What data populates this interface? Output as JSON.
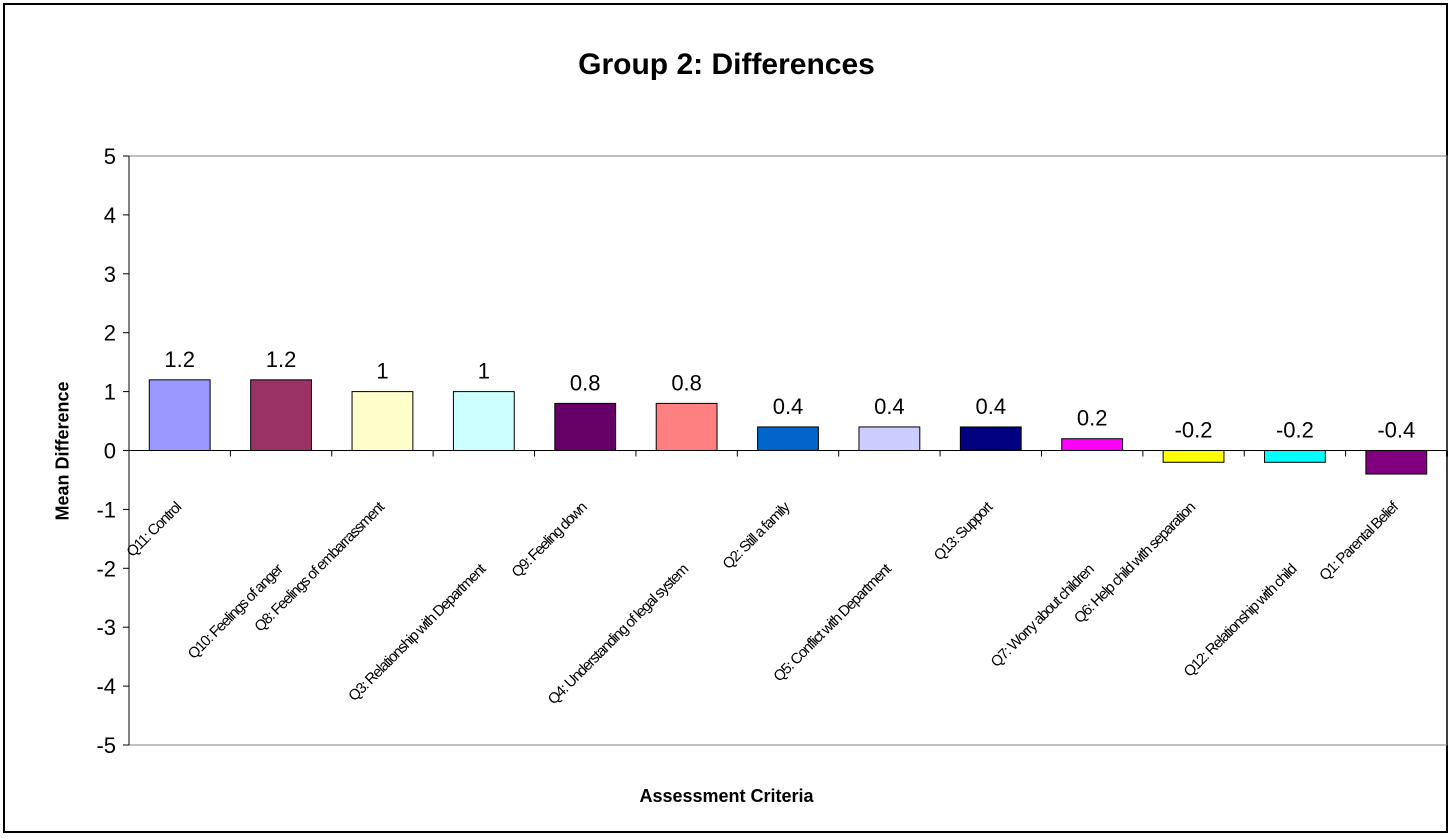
{
  "chart_data": {
    "type": "bar",
    "title": "Group 2: Differences",
    "xlabel": "Assessment Criteria",
    "ylabel": "Mean Difference",
    "ylim": [
      -5,
      5
    ],
    "yticks": [
      5,
      4,
      3,
      2,
      1,
      0,
      -1,
      -2,
      -3,
      -4,
      -5
    ],
    "grid": false,
    "categories": [
      "Q11: Control",
      "Q10: Feelings of anger",
      "Q8: Feelings of embarrassment",
      "Q3: Relationship with Department",
      "Q9: Feeling down",
      "Q4: Understanding of legal system",
      "Q2: Still a family",
      "Q5: Conflict with Department",
      "Q13: Support",
      "Q7: Worry about children",
      "Q6: Help child with separation",
      "Q12: Relationship with child",
      "Q1: Parental Belief"
    ],
    "values": [
      1.2,
      1.2,
      1,
      1,
      0.8,
      0.8,
      0.4,
      0.4,
      0.4,
      0.2,
      -0.2,
      -0.2,
      -0.4
    ],
    "value_labels": [
      "1.2",
      "1.2",
      "1",
      "1",
      "0.8",
      "0.8",
      "0.4",
      "0.4",
      "0.4",
      "0.2",
      "-0.2",
      "-0.2",
      "-0.4"
    ],
    "colors": [
      "#9999ff",
      "#993366",
      "#ffffcc",
      "#ccffff",
      "#660066",
      "#ff8080",
      "#0066cc",
      "#ccccff",
      "#000080",
      "#ff00ff",
      "#ffff00",
      "#00ffff",
      "#800080"
    ]
  }
}
